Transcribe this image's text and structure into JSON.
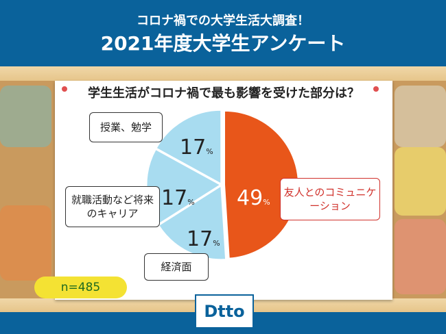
{
  "header": {
    "subtitle": "コロナ禍での大学生活大調査！",
    "title": "2021年度大学生アンケート"
  },
  "chart_data": {
    "type": "pie",
    "title": "学生生活がコロナ禍で最も影響を受けた部分は？",
    "slices": [
      {
        "label": "友人とのコミュニケーション",
        "value": 49,
        "color": "#e8561a"
      },
      {
        "label": "経済面",
        "value": 17,
        "color": "#a8dcf0"
      },
      {
        "label": "就職活動など将来のキャリア",
        "value": 17,
        "color": "#a8dcf0"
      },
      {
        "label": "授業、勉学",
        "value": 17,
        "color": "#a8dcf0"
      }
    ],
    "unit": "%",
    "sample": "n=485"
  },
  "logo": "Dtto"
}
